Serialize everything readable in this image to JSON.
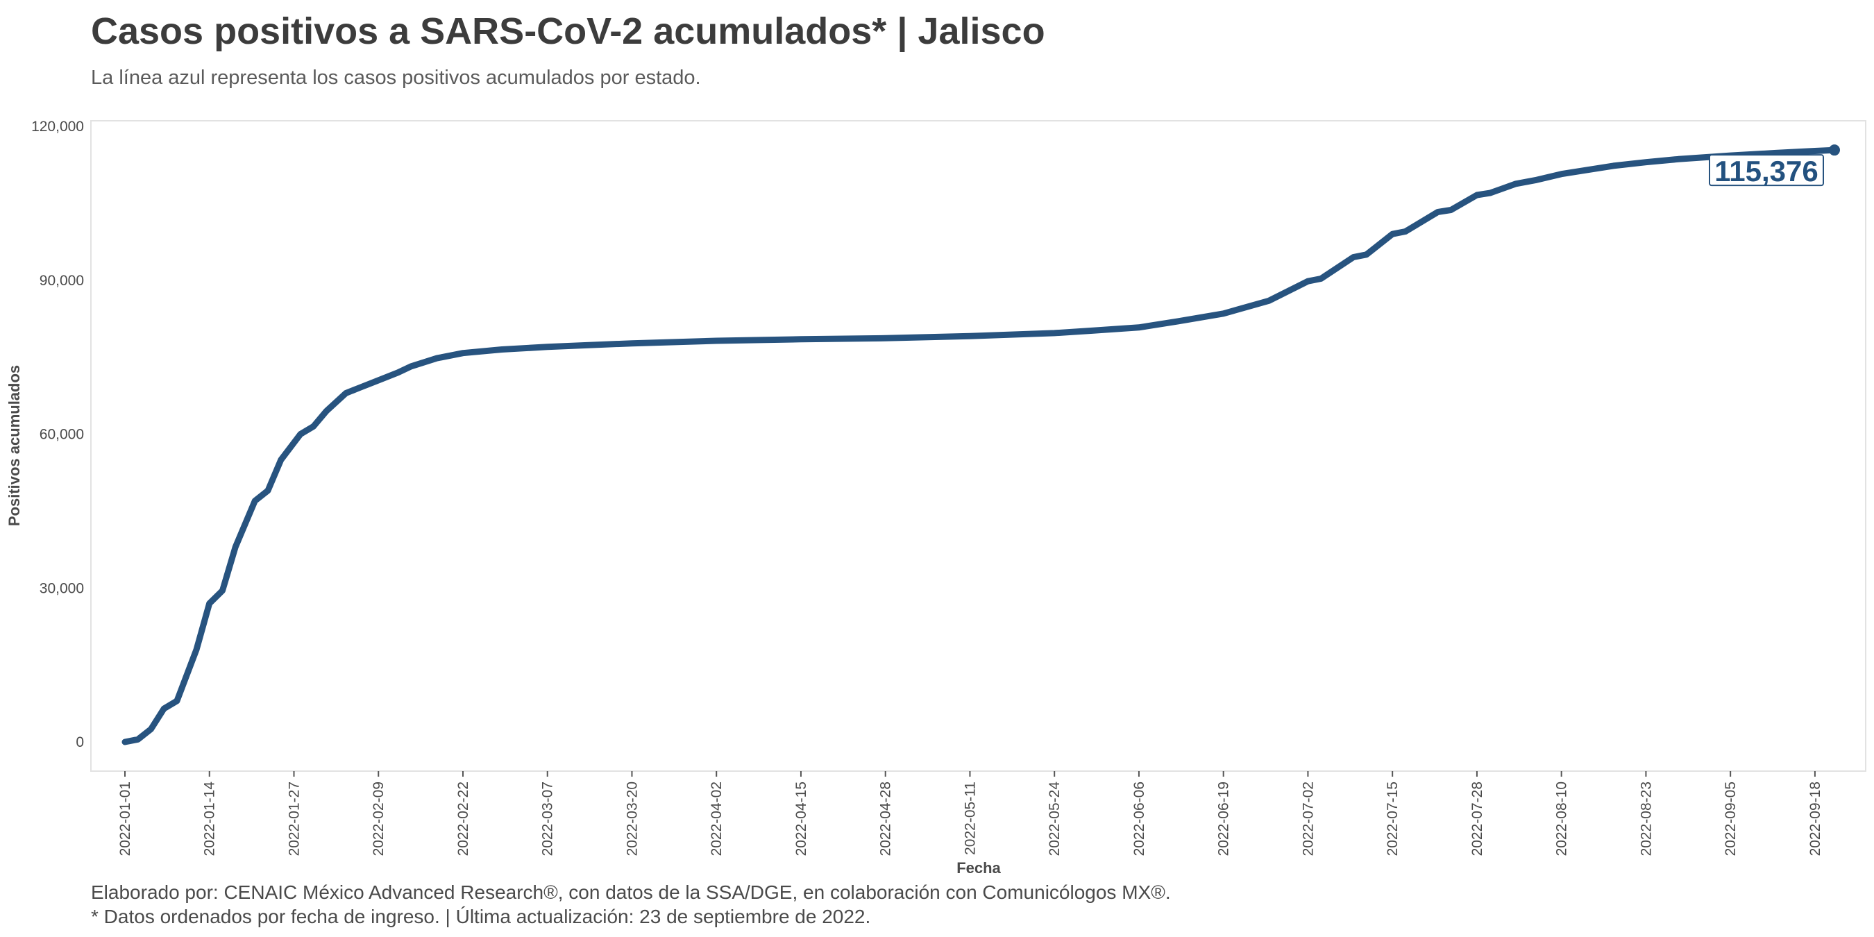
{
  "header": {
    "title": "Casos positivos a SARS-CoV-2 acumulados* | Jalisco",
    "subtitle": "La línea azul representa los casos positivos acumulados por estado."
  },
  "footer": {
    "line1": "Elaborado por: CENAIC México Advanced Research®, con datos de la SSA/DGE, en colaboración con Comunicólogos MX®.",
    "line2": "* Datos ordenados por fecha de ingreso. | Última actualización: 23 de septiembre de 2022."
  },
  "colors": {
    "line": "#27537f",
    "panel_border": "#e2e2e2",
    "label_border": "#27537f"
  },
  "chart_data": {
    "type": "line",
    "xlabel": "Fecha",
    "ylabel": "Positivos acumulados",
    "ylim": [
      0,
      120000
    ],
    "yticks": [
      0,
      30000,
      60000,
      90000,
      120000
    ],
    "ytick_labels": [
      "0",
      "30,000",
      "60,000",
      "90,000",
      "120,000"
    ],
    "xlim": [
      "2022-01-01",
      "2022-09-21"
    ],
    "xticks": [
      "2022-01-01",
      "2022-01-14",
      "2022-01-27",
      "2022-02-09",
      "2022-02-22",
      "2022-03-07",
      "2022-03-20",
      "2022-04-02",
      "2022-04-15",
      "2022-04-28",
      "2022-05-11",
      "2022-05-24",
      "2022-06-06",
      "2022-06-19",
      "2022-07-02",
      "2022-07-15",
      "2022-07-28",
      "2022-08-10",
      "2022-08-23",
      "2022-09-05",
      "2022-09-18"
    ],
    "grid": false,
    "end_label": "115,376",
    "series": [
      {
        "values": [
          {
            "x": "2022-01-01",
            "y": 0
          },
          {
            "x": "2022-01-03",
            "y": 500
          },
          {
            "x": "2022-01-05",
            "y": 2500
          },
          {
            "x": "2022-01-07",
            "y": 6500
          },
          {
            "x": "2022-01-09",
            "y": 8000
          },
          {
            "x": "2022-01-12",
            "y": 18000
          },
          {
            "x": "2022-01-14",
            "y": 27000
          },
          {
            "x": "2022-01-16",
            "y": 29500
          },
          {
            "x": "2022-01-18",
            "y": 38000
          },
          {
            "x": "2022-01-21",
            "y": 47000
          },
          {
            "x": "2022-01-23",
            "y": 49000
          },
          {
            "x": "2022-01-25",
            "y": 55000
          },
          {
            "x": "2022-01-28",
            "y": 60000
          },
          {
            "x": "2022-01-30",
            "y": 61500
          },
          {
            "x": "2022-02-01",
            "y": 64500
          },
          {
            "x": "2022-02-04",
            "y": 68000
          },
          {
            "x": "2022-02-06",
            "y": 69000
          },
          {
            "x": "2022-02-09",
            "y": 70500
          },
          {
            "x": "2022-02-12",
            "y": 72000
          },
          {
            "x": "2022-02-14",
            "y": 73200
          },
          {
            "x": "2022-02-18",
            "y": 74800
          },
          {
            "x": "2022-02-22",
            "y": 75800
          },
          {
            "x": "2022-02-28",
            "y": 76500
          },
          {
            "x": "2022-03-07",
            "y": 77000
          },
          {
            "x": "2022-03-20",
            "y": 77700
          },
          {
            "x": "2022-04-02",
            "y": 78200
          },
          {
            "x": "2022-04-15",
            "y": 78500
          },
          {
            "x": "2022-04-28",
            "y": 78700
          },
          {
            "x": "2022-05-11",
            "y": 79100
          },
          {
            "x": "2022-05-24",
            "y": 79700
          },
          {
            "x": "2022-05-30",
            "y": 80200
          },
          {
            "x": "2022-06-06",
            "y": 80800
          },
          {
            "x": "2022-06-12",
            "y": 82000
          },
          {
            "x": "2022-06-19",
            "y": 83500
          },
          {
            "x": "2022-06-26",
            "y": 86000
          },
          {
            "x": "2022-07-02",
            "y": 89800
          },
          {
            "x": "2022-07-04",
            "y": 90300
          },
          {
            "x": "2022-07-09",
            "y": 94500
          },
          {
            "x": "2022-07-11",
            "y": 95000
          },
          {
            "x": "2022-07-15",
            "y": 99000
          },
          {
            "x": "2022-07-17",
            "y": 99500
          },
          {
            "x": "2022-07-22",
            "y": 103300
          },
          {
            "x": "2022-07-24",
            "y": 103700
          },
          {
            "x": "2022-07-28",
            "y": 106600
          },
          {
            "x": "2022-07-30",
            "y": 107000
          },
          {
            "x": "2022-08-03",
            "y": 108800
          },
          {
            "x": "2022-08-06",
            "y": 109500
          },
          {
            "x": "2022-08-10",
            "y": 110700
          },
          {
            "x": "2022-08-14",
            "y": 111500
          },
          {
            "x": "2022-08-18",
            "y": 112300
          },
          {
            "x": "2022-08-23",
            "y": 113000
          },
          {
            "x": "2022-08-28",
            "y": 113600
          },
          {
            "x": "2022-09-05",
            "y": 114300
          },
          {
            "x": "2022-09-12",
            "y": 114800
          },
          {
            "x": "2022-09-18",
            "y": 115200
          },
          {
            "x": "2022-09-21",
            "y": 115376
          }
        ]
      }
    ]
  }
}
